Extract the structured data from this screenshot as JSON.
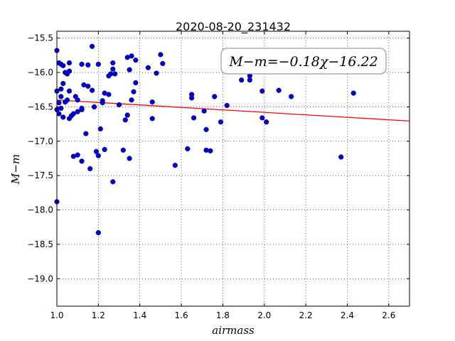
{
  "chart_data": {
    "type": "scatter",
    "title": "2020-08-20_231432",
    "xlabel": "airmass",
    "ylabel": "M−m",
    "xlim": [
      1.0,
      2.7
    ],
    "ylim": [
      -15.4,
      -19.4
    ],
    "y_inverted": true,
    "grid": true,
    "x_ticks": [
      "1.0",
      "1.2",
      "1.4",
      "1.6",
      "1.8",
      "2.0",
      "2.2",
      "2.4",
      "2.6"
    ],
    "y_ticks": [
      "−15.5",
      "−16.0",
      "−16.5",
      "−17.0",
      "−17.5",
      "−18.0",
      "−18.5",
      "−19.0"
    ],
    "annotation": "M−m=−0.18χ−16.22",
    "fit_line": {
      "slope": -0.18,
      "intercept": -16.22,
      "color": "#ff0000"
    },
    "point_color": "#0000cc",
    "points": [
      [
        1.0,
        -15.68
      ],
      [
        1.01,
        -15.86
      ],
      [
        1.02,
        -15.88
      ],
      [
        1.04,
        -16.0
      ],
      [
        1.05,
        -16.02
      ],
      [
        1.06,
        -15.98
      ],
      [
        1.06,
        -15.86
      ],
      [
        1.03,
        -15.9
      ],
      [
        1.0,
        -16.27
      ],
      [
        1.02,
        -16.24
      ],
      [
        1.03,
        -16.16
      ],
      [
        1.02,
        -16.35
      ],
      [
        1.01,
        -16.44
      ],
      [
        1.0,
        -16.54
      ],
      [
        1.02,
        -16.52
      ],
      [
        1.01,
        -16.6
      ],
      [
        1.04,
        -16.43
      ],
      [
        1.03,
        -16.65
      ],
      [
        1.05,
        -16.4
      ],
      [
        1.06,
        -16.27
      ],
      [
        1.06,
        -16.67
      ],
      [
        1.07,
        -16.63
      ],
      [
        1.08,
        -16.6
      ],
      [
        1.09,
        -16.35
      ],
      [
        1.1,
        -16.4
      ],
      [
        1.1,
        -16.57
      ],
      [
        1.12,
        -16.54
      ],
      [
        1.12,
        -16.52
      ],
      [
        1.12,
        -15.88
      ],
      [
        1.13,
        -16.18
      ],
      [
        1.15,
        -15.89
      ],
      [
        1.15,
        -16.2
      ],
      [
        1.17,
        -16.26
      ],
      [
        1.17,
        -15.62
      ],
      [
        1.18,
        -16.5
      ],
      [
        1.2,
        -15.88
      ],
      [
        1.14,
        -16.89
      ],
      [
        1.21,
        -16.82
      ],
      [
        1.22,
        -16.44
      ],
      [
        1.22,
        -16.41
      ],
      [
        1.23,
        -16.3
      ],
      [
        1.25,
        -16.32
      ],
      [
        1.25,
        -16.05
      ],
      [
        1.26,
        -16.02
      ],
      [
        1.27,
        -15.86
      ],
      [
        1.27,
        -15.95
      ],
      [
        1.28,
        -16.02
      ],
      [
        1.3,
        -16.47
      ],
      [
        1.33,
        -16.69
      ],
      [
        1.34,
        -16.62
      ],
      [
        1.34,
        -15.78
      ],
      [
        1.36,
        -15.76
      ],
      [
        1.35,
        -15.96
      ],
      [
        1.36,
        -16.4
      ],
      [
        1.37,
        -16.28
      ],
      [
        1.38,
        -16.15
      ],
      [
        1.38,
        -15.82
      ],
      [
        1.44,
        -15.93
      ],
      [
        1.46,
        -16.43
      ],
      [
        1.46,
        -16.67
      ],
      [
        1.48,
        -16.01
      ],
      [
        1.5,
        -15.74
      ],
      [
        1.51,
        -15.87
      ],
      [
        1.08,
        -17.22
      ],
      [
        1.1,
        -17.2
      ],
      [
        1.12,
        -17.29
      ],
      [
        1.16,
        -17.4
      ],
      [
        1.19,
        -17.15
      ],
      [
        1.2,
        -17.21
      ],
      [
        1.23,
        -17.12
      ],
      [
        1.27,
        -17.59
      ],
      [
        1.2,
        -18.33
      ],
      [
        1.32,
        -17.13
      ],
      [
        1.35,
        -17.25
      ],
      [
        1.0,
        -17.88
      ],
      [
        1.57,
        -17.35
      ],
      [
        1.63,
        -17.11
      ],
      [
        1.65,
        -16.37
      ],
      [
        1.65,
        -16.32
      ],
      [
        1.66,
        -16.66
      ],
      [
        1.71,
        -16.56
      ],
      [
        1.72,
        -16.83
      ],
      [
        1.72,
        -17.13
      ],
      [
        1.74,
        -17.14
      ],
      [
        1.76,
        -16.35
      ],
      [
        1.79,
        -16.72
      ],
      [
        1.82,
        -16.48
      ],
      [
        1.89,
        -16.11
      ],
      [
        1.93,
        -16.11
      ],
      [
        1.93,
        -16.05
      ],
      [
        1.99,
        -16.27
      ],
      [
        1.99,
        -16.66
      ],
      [
        2.01,
        -16.72
      ],
      [
        2.07,
        -16.26
      ],
      [
        2.13,
        -16.35
      ],
      [
        2.37,
        -17.23
      ],
      [
        2.43,
        -16.3
      ]
    ]
  }
}
